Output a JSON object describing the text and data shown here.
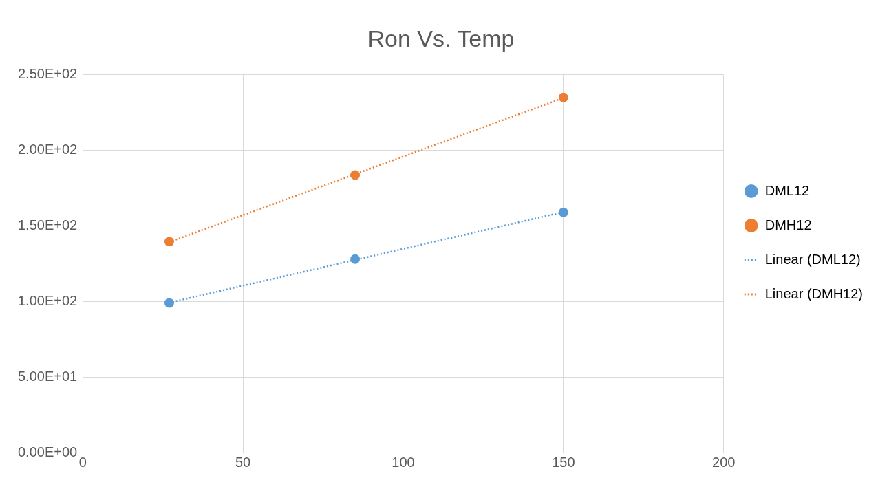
{
  "chart_data": {
    "type": "scatter",
    "title": "Ron Vs. Temp",
    "xlim": [
      0,
      200
    ],
    "xticks": [
      0,
      50,
      100,
      150,
      200
    ],
    "ylim": [
      0,
      250
    ],
    "yticks": [
      {
        "value": 0,
        "label": "0.00E+00"
      },
      {
        "value": 50,
        "label": "5.00E+01"
      },
      {
        "value": 100,
        "label": "1.00E+02"
      },
      {
        "value": 150,
        "label": "1.50E+02"
      },
      {
        "value": 200,
        "label": "2.00E+02"
      },
      {
        "value": 250,
        "label": "2.50E+02"
      }
    ],
    "grid": true,
    "legend": "right",
    "marker": "circle",
    "series": [
      {
        "name": "DML12",
        "color": "#5b9bd5",
        "x": [
          27,
          85,
          150
        ],
        "values": [
          99,
          128,
          159
        ]
      },
      {
        "name": "DMH12",
        "color": "#ed7d31",
        "x": [
          27,
          85,
          150
        ],
        "values": [
          139.6,
          183.7,
          235
        ]
      },
      {
        "name": "Linear (DML12)",
        "type": "line",
        "line_style": "dotted",
        "marker": "none",
        "color": "#5b9bd5",
        "x": [
          27,
          150
        ],
        "values": [
          99.2,
          159.2
        ]
      },
      {
        "name": "Linear (DMH12)",
        "type": "line",
        "line_style": "dotted",
        "marker": "none",
        "color": "#ed7d31",
        "x": [
          27,
          150
        ],
        "values": [
          139.3,
          234.7
        ]
      }
    ]
  }
}
